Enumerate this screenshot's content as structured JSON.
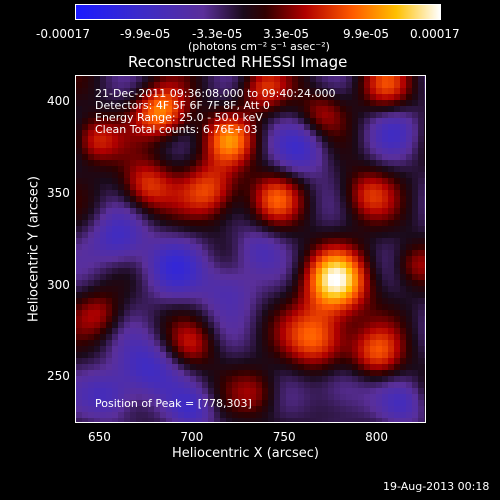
{
  "chart_data": {
    "type": "heatmap",
    "title": "Reconstructed RHESSI Image",
    "xlabel": "Heliocentric X (arcsec)",
    "ylabel": "Heliocentric Y (arcsec)",
    "xlim": [
      637,
      827
    ],
    "ylim": [
      225,
      415
    ],
    "xticks": [
      650,
      700,
      750,
      800
    ],
    "yticks": [
      250,
      300,
      350,
      400
    ],
    "colorbar": {
      "ticks": [
        "-0.00017",
        "-9.9e-05",
        "-3.3e-05",
        "3.3e-05",
        "9.9e-05",
        "0.00017"
      ],
      "units": "(photons cm⁻² s⁻¹ asec⁻²)",
      "vmin": -0.00017,
      "vmax": 0.00017
    },
    "annotations": {
      "time": "21-Dec-2011 09:36:08.000 to 09:40:24.000",
      "detectors": "Detectors: 4F 5F 6F 7F 8F, Att 0",
      "energy": "Energy Range: 25.0 - 50.0 keV",
      "algorithm": "Clean     Total counts: 6.76E+03",
      "peak": "Position of Peak = [778,303]"
    },
    "blobs": [
      {
        "x": 778,
        "y": 303,
        "v": 1.0,
        "s": 12
      },
      {
        "x": 768,
        "y": 272,
        "v": 0.7,
        "s": 12
      },
      {
        "x": 800,
        "y": 263,
        "v": 0.55,
        "s": 10
      },
      {
        "x": 683,
        "y": 395,
        "v": 0.75,
        "s": 10
      },
      {
        "x": 720,
        "y": 380,
        "v": 0.6,
        "s": 10
      },
      {
        "x": 710,
        "y": 352,
        "v": 0.6,
        "s": 11
      },
      {
        "x": 675,
        "y": 355,
        "v": 0.55,
        "s": 10
      },
      {
        "x": 745,
        "y": 348,
        "v": 0.5,
        "s": 10
      },
      {
        "x": 795,
        "y": 350,
        "v": 0.45,
        "s": 10
      },
      {
        "x": 805,
        "y": 410,
        "v": 0.45,
        "s": 10
      },
      {
        "x": 647,
        "y": 380,
        "v": 0.5,
        "s": 9
      },
      {
        "x": 738,
        "y": 408,
        "v": 0.45,
        "s": 9
      },
      {
        "x": 770,
        "y": 395,
        "v": 0.35,
        "s": 9
      },
      {
        "x": 650,
        "y": 285,
        "v": 0.35,
        "s": 9
      },
      {
        "x": 700,
        "y": 268,
        "v": 0.35,
        "s": 9
      },
      {
        "x": 735,
        "y": 242,
        "v": 0.3,
        "s": 9
      },
      {
        "x": 820,
        "y": 312,
        "v": 0.3,
        "s": 8
      },
      {
        "x": 690,
        "y": 310,
        "v": -0.4,
        "s": 12
      },
      {
        "x": 660,
        "y": 325,
        "v": -0.45,
        "s": 11
      },
      {
        "x": 720,
        "y": 300,
        "v": -0.35,
        "s": 11
      },
      {
        "x": 675,
        "y": 255,
        "v": -0.45,
        "s": 12
      },
      {
        "x": 655,
        "y": 240,
        "v": -0.4,
        "s": 10
      },
      {
        "x": 760,
        "y": 375,
        "v": -0.4,
        "s": 11
      },
      {
        "x": 810,
        "y": 385,
        "v": -0.3,
        "s": 10
      },
      {
        "x": 780,
        "y": 245,
        "v": -0.35,
        "s": 11
      },
      {
        "x": 815,
        "y": 235,
        "v": -0.3,
        "s": 9
      },
      {
        "x": 735,
        "y": 320,
        "v": -0.3,
        "s": 9
      },
      {
        "x": 700,
        "y": 232,
        "v": -0.35,
        "s": 9
      }
    ]
  },
  "footer": {
    "timestamp": "19-Aug-2013 00:18"
  }
}
